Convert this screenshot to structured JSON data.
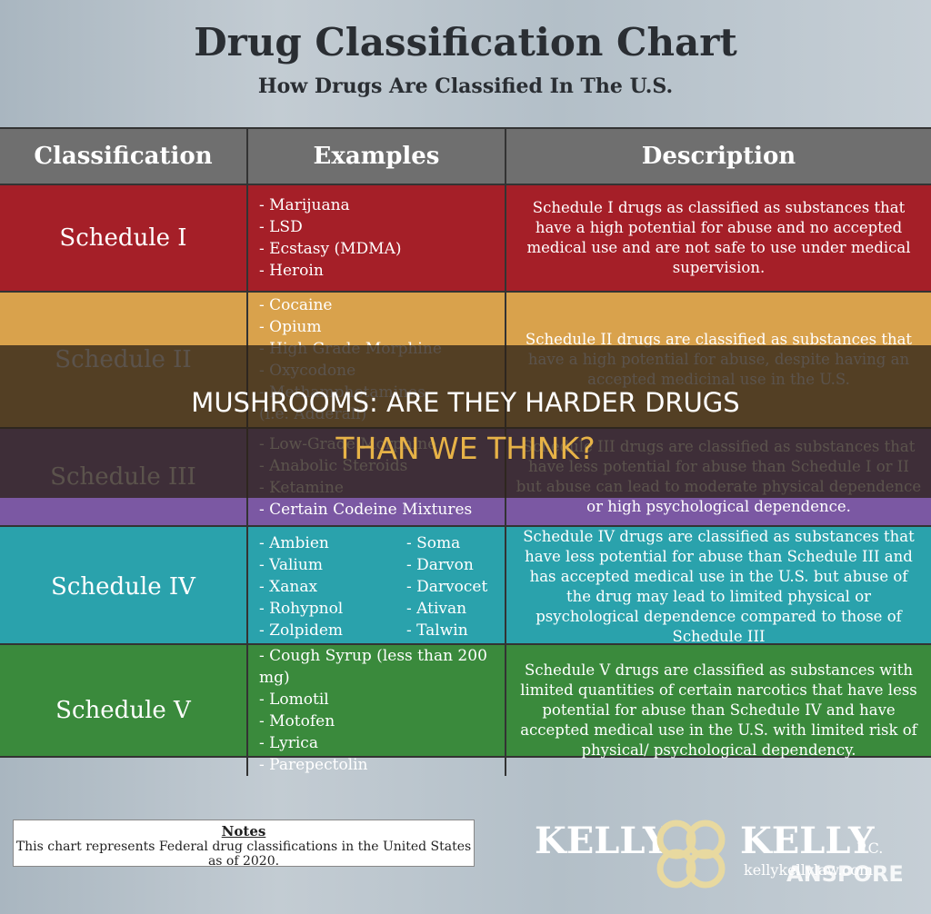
{
  "header": {
    "title": "Drug Classification Chart",
    "subtitle": "How Drugs Are Classified In The U.S."
  },
  "table": {
    "columns": [
      "Classification",
      "Examples",
      "Description"
    ],
    "rows": [
      {
        "classification": "Schedule I",
        "color": "#a51f28",
        "examples": [
          "- Marijuana",
          "- LSD",
          "- Ecstasy (MDMA)",
          "- Heroin"
        ],
        "description": "Schedule I drugs as classified as substances that have a high potential for abuse and no accepted medical use and are not safe to use under medical supervision."
      },
      {
        "classification": "Schedule II",
        "color": "#d9a24c",
        "examples": [
          "- Cocaine",
          "- Opium",
          "- High Grade Morphine",
          "- Oxycodone",
          "- Methamphetamines",
          "(i.e. Adderall)"
        ],
        "description": "Schedule II drugs are classified as substances that have a high potential for abuse, despite having an accepted medicinal use in the U.S."
      },
      {
        "classification": "Schedule III",
        "color": "#7b58a3",
        "examples": [
          "- Low-Grade Morphine",
          "- Anabolic Steroids",
          "- Ketamine",
          "- Certain Codeine Mixtures"
        ],
        "description": "Schedule III drugs are classified as substances that have less potential for abuse than Schedule I or II but abuse can lead to moderate physical dependence or high psychological dependence."
      },
      {
        "classification": "Schedule IV",
        "color": "#2aa2ac",
        "examples": [
          "- Ambien",
          "- Valium",
          "- Xanax",
          "- Rohypnol",
          "- Zolpidem",
          "- Soma",
          "- Darvon",
          "- Darvocet",
          "- Ativan",
          "- Talwin"
        ],
        "description": "Schedule IV drugs are classified as substances that have less potential for abuse than Schedule III and has accepted medical use in the U.S. but abuse of the drug may lead to limited physical or psychological dependence compared to those of Schedule III"
      },
      {
        "classification": "Schedule V",
        "color": "#3a8a3c",
        "examples": [
          "- Cough Syrup (less than 200 mg)",
          "- Lomotil",
          "- Motofen",
          "- Lyrica",
          "- Parepectolin"
        ],
        "description": "Schedule V drugs are classified as substances with limited quantities of certain narcotics that have less potential for abuse than Schedule IV and have accepted medical use in the U.S. with limited risk of physical/ psychological dependency."
      }
    ]
  },
  "banner": {
    "line1": "MUSHROOMS: ARE THEY HARDER DRUGS",
    "line2": "THAN WE THINK?"
  },
  "notes": {
    "title": "Notes",
    "text": "This chart represents Federal drug classifications in the United States as of 2020."
  },
  "logo": {
    "name_left": "KELLY",
    "name_right": "KELLY",
    "suffix": "P.C.",
    "url": "kellykellylaw.com"
  },
  "watermark": "ANSPORE"
}
